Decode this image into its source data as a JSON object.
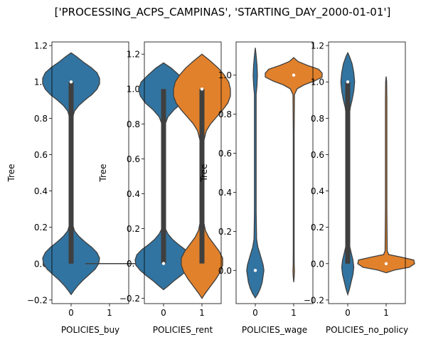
{
  "figure": {
    "suptitle": "['PROCESSING_ACPS_CAMPINAS', 'STARTING_DAY_2000-01-01']"
  },
  "colors": {
    "series0": "#3274a1",
    "series1": "#e1812c",
    "inner": "#3f3f3f",
    "edge": "#3f3f3f"
  },
  "chart_data": [
    {
      "type": "violin",
      "xlabel": "POLICIES_buy",
      "ylabel": "Tree",
      "categories": [
        "0",
        "1"
      ],
      "ylim": [
        -0.22,
        1.22
      ],
      "yticks": [
        -0.2,
        0.0,
        0.2,
        0.4,
        0.6,
        0.8,
        1.0,
        1.2
      ],
      "ytick_labels": [
        "−0.2",
        "0.0",
        "0.2",
        "0.4",
        "0.6",
        "0.8",
        "1.0",
        "1.2"
      ],
      "violins": [
        {
          "category": "0",
          "series": 0,
          "profile": [
            [
              -0.17,
              0
            ],
            [
              -0.15,
              0.03
            ],
            [
              -0.12,
              0.08
            ],
            [
              -0.09,
              0.14
            ],
            [
              -0.06,
              0.21
            ],
            [
              -0.03,
              0.28
            ],
            [
              0.0,
              0.32
            ],
            [
              0.03,
              0.33
            ],
            [
              0.06,
              0.3
            ],
            [
              0.09,
              0.24
            ],
            [
              0.12,
              0.16
            ],
            [
              0.15,
              0.09
            ],
            [
              0.18,
              0.04
            ],
            [
              0.22,
              0.015
            ],
            [
              0.3,
              0.01
            ],
            [
              0.5,
              0.01
            ],
            [
              0.7,
              0.01
            ],
            [
              0.8,
              0.015
            ],
            [
              0.84,
              0.04
            ],
            [
              0.87,
              0.09
            ],
            [
              0.9,
              0.16
            ],
            [
              0.93,
              0.24
            ],
            [
              0.96,
              0.3
            ],
            [
              0.99,
              0.33
            ],
            [
              1.02,
              0.33
            ],
            [
              1.05,
              0.3
            ],
            [
              1.08,
              0.23
            ],
            [
              1.11,
              0.14
            ],
            [
              1.14,
              0.06
            ],
            [
              1.16,
              0
            ]
          ],
          "box": [
            0.0,
            1.0
          ],
          "whisker": [
            0.0,
            1.0
          ],
          "median": 1.0
        },
        {
          "category": "1",
          "series": 1,
          "flat": 0.0
        }
      ]
    },
    {
      "type": "violin",
      "xlabel": "POLICIES_rent",
      "ylabel": "Tree",
      "categories": [
        "0",
        "1"
      ],
      "ylim": [
        -0.23,
        1.27
      ],
      "yticks": [
        -0.2,
        0.0,
        0.2,
        0.4,
        0.6,
        0.8,
        1.0,
        1.2
      ],
      "ytick_labels": [
        "−0.2",
        "0.0",
        "0.2",
        "0.4",
        "0.6",
        "0.8",
        "1.0",
        "1.2"
      ],
      "violins": [
        {
          "category": "0",
          "series": 0,
          "profile": [
            [
              -0.15,
              0
            ],
            [
              -0.13,
              0.05
            ],
            [
              -0.1,
              0.12
            ],
            [
              -0.07,
              0.2
            ],
            [
              -0.04,
              0.27
            ],
            [
              -0.01,
              0.32
            ],
            [
              0.02,
              0.33
            ],
            [
              0.05,
              0.31
            ],
            [
              0.08,
              0.25
            ],
            [
              0.11,
              0.17
            ],
            [
              0.14,
              0.1
            ],
            [
              0.17,
              0.05
            ],
            [
              0.2,
              0.02
            ],
            [
              0.3,
              0.01
            ],
            [
              0.5,
              0.01
            ],
            [
              0.7,
              0.01
            ],
            [
              0.8,
              0.02
            ],
            [
              0.84,
              0.05
            ],
            [
              0.88,
              0.12
            ],
            [
              0.92,
              0.21
            ],
            [
              0.96,
              0.27
            ],
            [
              1.0,
              0.29
            ],
            [
              1.04,
              0.26
            ],
            [
              1.08,
              0.18
            ],
            [
              1.12,
              0.09
            ],
            [
              1.15,
              0
            ]
          ],
          "box": [
            0.0,
            1.0
          ],
          "whisker": [
            0.0,
            1.0
          ],
          "median": 0.0
        },
        {
          "category": "1",
          "series": 1,
          "profile": [
            [
              -0.2,
              0
            ],
            [
              -0.17,
              0.04
            ],
            [
              -0.13,
              0.1
            ],
            [
              -0.09,
              0.16
            ],
            [
              -0.05,
              0.21
            ],
            [
              -0.01,
              0.24
            ],
            [
              0.03,
              0.24
            ],
            [
              0.07,
              0.2
            ],
            [
              0.11,
              0.14
            ],
            [
              0.15,
              0.08
            ],
            [
              0.19,
              0.04
            ],
            [
              0.24,
              0.02
            ],
            [
              0.35,
              0.015
            ],
            [
              0.55,
              0.015
            ],
            [
              0.7,
              0.02
            ],
            [
              0.76,
              0.05
            ],
            [
              0.8,
              0.1
            ],
            [
              0.84,
              0.17
            ],
            [
              0.88,
              0.24
            ],
            [
              0.92,
              0.3
            ],
            [
              0.96,
              0.33
            ],
            [
              1.0,
              0.33
            ],
            [
              1.04,
              0.31
            ],
            [
              1.08,
              0.26
            ],
            [
              1.12,
              0.19
            ],
            [
              1.16,
              0.1
            ],
            [
              1.2,
              0
            ]
          ],
          "box": [
            0.0,
            1.0
          ],
          "whisker": [
            0.0,
            1.0
          ],
          "median": 1.0
        }
      ]
    },
    {
      "type": "violin",
      "xlabel": "POLICIES_wage",
      "ylabel": "Tree",
      "categories": [
        "0",
        "1"
      ],
      "ylim": [
        -0.17,
        1.17
      ],
      "yticks": [
        0.0,
        0.2,
        0.4,
        0.6,
        0.8,
        1.0
      ],
      "ytick_labels": [
        "0.0",
        "0.2",
        "0.4",
        "0.6",
        "0.8",
        "1.0"
      ],
      "violins": [
        {
          "category": "0",
          "series": 0,
          "profile": [
            [
              -0.14,
              0
            ],
            [
              -0.12,
              0.03
            ],
            [
              -0.09,
              0.06
            ],
            [
              -0.06,
              0.08
            ],
            [
              -0.03,
              0.09
            ],
            [
              0.0,
              0.1
            ],
            [
              0.03,
              0.09
            ],
            [
              0.06,
              0.07
            ],
            [
              0.09,
              0.05
            ],
            [
              0.12,
              0.03
            ],
            [
              0.16,
              0.015
            ],
            [
              0.3,
              0.01
            ],
            [
              0.6,
              0.01
            ],
            [
              0.9,
              0.01
            ],
            [
              0.95,
              0.02
            ],
            [
              1.0,
              0.025
            ],
            [
              1.05,
              0.02
            ],
            [
              1.1,
              0.01
            ],
            [
              1.14,
              0
            ]
          ],
          "box": null,
          "whisker": null,
          "median": 0.0
        },
        {
          "category": "1",
          "series": 1,
          "profile": [
            [
              -0.06,
              0
            ],
            [
              -0.03,
              0.006
            ],
            [
              0.0,
              0.008
            ],
            [
              0.03,
              0.006
            ],
            [
              0.1,
              0.005
            ],
            [
              0.4,
              0.005
            ],
            [
              0.7,
              0.005
            ],
            [
              0.9,
              0.008
            ],
            [
              0.93,
              0.04
            ],
            [
              0.95,
              0.12
            ],
            [
              0.97,
              0.24
            ],
            [
              0.99,
              0.33
            ],
            [
              1.01,
              0.34
            ],
            [
              1.03,
              0.29
            ],
            [
              1.05,
              0.16
            ],
            [
              1.07,
              0.05
            ],
            [
              1.09,
              0
            ]
          ],
          "box": null,
          "whisker": null,
          "median": 1.0
        }
      ]
    },
    {
      "type": "violin",
      "xlabel": "POLICIES_no_policy",
      "ylabel": "",
      "categories": [
        "0",
        "1"
      ],
      "ylim": [
        -0.22,
        1.22
      ],
      "yticks": [
        -0.2,
        0.0,
        0.2,
        0.4,
        0.6,
        0.8,
        1.0,
        1.2
      ],
      "ytick_labels": [
        "−0.2",
        "0.0",
        "0.2",
        "0.4",
        "0.6",
        "0.8",
        "1.0",
        "1.2"
      ],
      "violins": [
        {
          "category": "0",
          "series": 0,
          "profile": [
            [
              -0.17,
              0
            ],
            [
              -0.14,
              0.02
            ],
            [
              -0.1,
              0.04
            ],
            [
              -0.06,
              0.06
            ],
            [
              -0.02,
              0.07
            ],
            [
              0.02,
              0.06
            ],
            [
              0.06,
              0.04
            ],
            [
              0.1,
              0.02
            ],
            [
              0.2,
              0.012
            ],
            [
              0.5,
              0.012
            ],
            [
              0.8,
              0.012
            ],
            [
              0.86,
              0.03
            ],
            [
              0.9,
              0.05
            ],
            [
              0.95,
              0.07
            ],
            [
              1.0,
              0.08
            ],
            [
              1.05,
              0.07
            ],
            [
              1.1,
              0.05
            ],
            [
              1.14,
              0.02
            ],
            [
              1.16,
              0
            ]
          ],
          "box": [
            0.0,
            1.0
          ],
          "whisker": [
            0.0,
            1.0
          ],
          "median": 1.0
        },
        {
          "category": "1",
          "series": 1,
          "profile": [
            [
              -0.05,
              0
            ],
            [
              -0.035,
              0.1
            ],
            [
              -0.02,
              0.27
            ],
            [
              0.0,
              0.35
            ],
            [
              0.02,
              0.32
            ],
            [
              0.035,
              0.18
            ],
            [
              0.05,
              0.03
            ],
            [
              0.07,
              0.012
            ],
            [
              0.3,
              0.008
            ],
            [
              0.6,
              0.008
            ],
            [
              0.9,
              0.008
            ],
            [
              1.0,
              0.006
            ],
            [
              1.03,
              0
            ]
          ],
          "box": null,
          "whisker": null,
          "median": 0.0
        }
      ]
    }
  ]
}
